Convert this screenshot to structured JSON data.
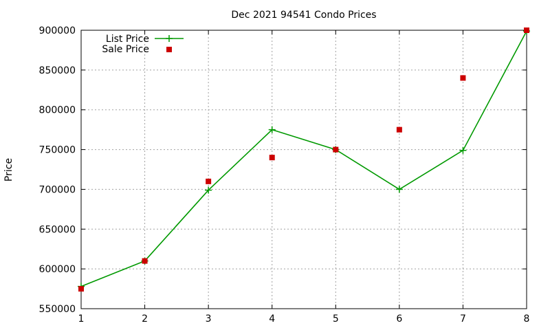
{
  "chart_data": {
    "type": "line",
    "title": "Dec 2021 94541 Condo Prices",
    "xlabel": "",
    "ylabel": "Price",
    "x": [
      1,
      2,
      3,
      4,
      5,
      6,
      7,
      8
    ],
    "xlim": [
      1,
      8
    ],
    "ylim": [
      550000,
      900000
    ],
    "xticks": [
      "1",
      "2",
      "3",
      "4",
      "5",
      "6",
      "7",
      "8"
    ],
    "yticks": [
      "550000",
      "600000",
      "650000",
      "700000",
      "750000",
      "800000",
      "850000",
      "900000"
    ],
    "grid": true,
    "legend_position": "top-left",
    "series": [
      {
        "name": "List Price",
        "style": "line-with-plus-markers",
        "color": "#009900",
        "values": [
          578000,
          610000,
          699000,
          775000,
          750000,
          700000,
          749000,
          899000
        ]
      },
      {
        "name": "Sale Price",
        "style": "square-points",
        "color": "#cc0000",
        "values": [
          575000,
          610000,
          710000,
          740000,
          750000,
          775000,
          840000,
          900000
        ]
      }
    ]
  }
}
